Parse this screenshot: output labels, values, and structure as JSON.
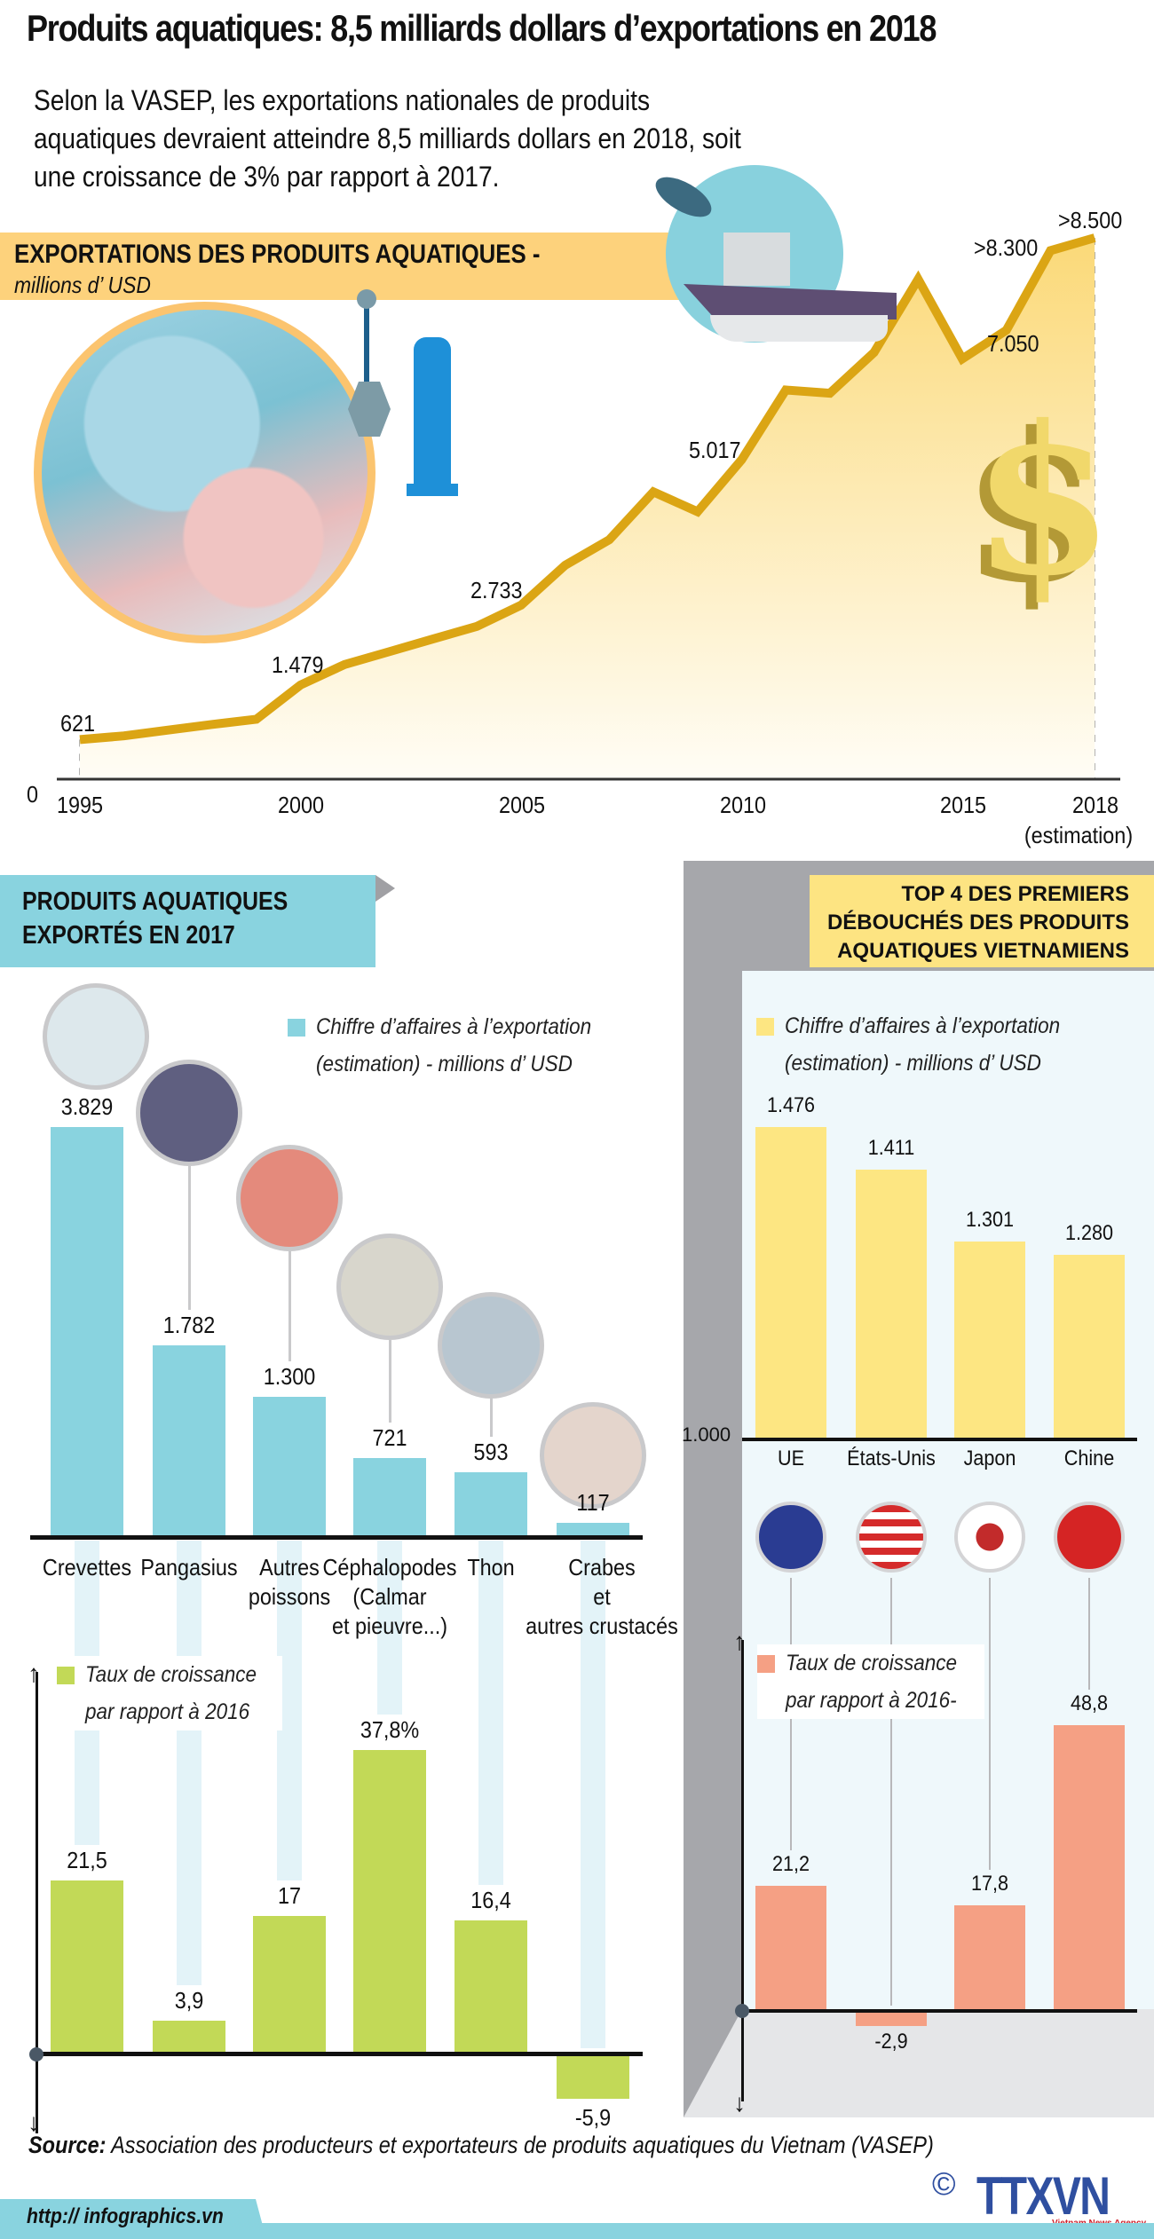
{
  "header": {
    "title": "Produits aquatiques: 8,5 milliards dollars d’exportations en 2018",
    "intro_lines": [
      "Selon la VASEP, les exportations nationales de produits",
      "aquatiques devraient atteindre 8,5 milliards dollars en 2018, soit",
      "une croissance de 3% par rapport à 2017."
    ]
  },
  "section1": {
    "banner_title": "EXPORTATIONS DES PRODUITS AQUATIQUES -",
    "banner_unit": "millions d’ USD",
    "zero_label": "0",
    "estimation_note": "(estimation)",
    "icons": [
      "factory-photo",
      "crane-icon",
      "boat-icon",
      "fish-icon",
      "dollar-icon"
    ]
  },
  "section2": {
    "banner_line1": "PRODUITS AQUATIQUES",
    "banner_line2": "EXPORTÉS EN 2017",
    "legend_value_line1": "Chiffre d’affaires à l’exportation",
    "legend_value_line2": "(estimation) - millions d’ USD",
    "legend_growth_line1": "Taux de croissance",
    "legend_growth_line2": "par rapport à 2016",
    "colors": {
      "value": "#89d3df",
      "growth": "#c2d957"
    }
  },
  "section3": {
    "banner_line1": "TOP 4  DES PREMIERS",
    "banner_line2": "DÉBOUCHÉS DES PRODUITS",
    "banner_line3": "AQUATIQUES VIETNAMIENS",
    "legend_value_line1": "Chiffre d’affaires à l’exportation",
    "legend_value_line2": "(estimation) - millions d’ USD",
    "legend_growth_line1": "Taux de croissance",
    "legend_growth_line2": "par rapport à 2016-",
    "axis_min_label": "1.000",
    "colors": {
      "value": "#fde682",
      "growth": "#f5a084"
    }
  },
  "footer": {
    "source_label": "Source:",
    "source_text": " Association des producteurs et exportateurs de produits aquatiques du Vietnam  (VASEP)",
    "url": "http:// infographics.vn",
    "copyright": "©",
    "logo": "TTXVN",
    "logo_sub": "Vietnam News Agency"
  },
  "chart_data": [
    {
      "type": "area",
      "title": "EXPORTATIONS DES PRODUITS AQUATIQUES - millions d’ USD",
      "xlabel": "",
      "ylabel": "millions d’ USD",
      "x": [
        1995,
        1996,
        1997,
        1998,
        1999,
        2000,
        2001,
        2002,
        2003,
        2004,
        2005,
        2006,
        2007,
        2008,
        2009,
        2010,
        2011,
        2012,
        2013,
        2014,
        2015,
        2016,
        2017,
        2018
      ],
      "values": [
        621,
        680,
        770,
        860,
        940,
        1479,
        1800,
        2000,
        2200,
        2400,
        2733,
        3360,
        3760,
        4510,
        4200,
        5017,
        6110,
        6060,
        6700,
        7850,
        6600,
        7050,
        8300,
        8500
      ],
      "labeled_points": [
        {
          "x": 1995,
          "label": "621"
        },
        {
          "x": 2000,
          "label": "1.479"
        },
        {
          "x": 2005,
          "label": "2.733"
        },
        {
          "x": 2010,
          "label": "5.017"
        },
        {
          "x": 2016,
          "label": "7.050"
        },
        {
          "x": 2017,
          "label": ">8.300"
        },
        {
          "x": 2018,
          "label": ">8.500"
        }
      ],
      "x_tick_labels": [
        "1995",
        "2000",
        "2005",
        "2010",
        "2015",
        "2018"
      ],
      "ylim": [
        0,
        9000
      ],
      "grid": "vertical dashed per year",
      "color": "#dba514"
    },
    {
      "type": "bar",
      "title": "PRODUITS AQUATIQUES EXPORTÉS EN 2017",
      "categories": [
        "Crevettes",
        "Pangasius",
        "Autres poissons",
        "Céphalopodes (Calmar et pieuvre...)",
        "Thon",
        "Crabes et autres crustacés"
      ],
      "category_lines": [
        [
          "Crevettes"
        ],
        [
          "Pangasius"
        ],
        [
          "Autres",
          "poissons"
        ],
        [
          "Céphalopodes",
          "(Calmar",
          "et pieuvre...)"
        ],
        [
          "Thon"
        ],
        [
          "Crabes",
          "et",
          "autres crustacés"
        ]
      ],
      "series": [
        {
          "name": "Chiffre d’affaires à l’exportation (estimation) - millions d’ USD",
          "values": [
            3829,
            1782,
            1300,
            721,
            593,
            117
          ],
          "labels": [
            "3.829",
            "1.782",
            "1.300",
            "721",
            "593",
            "117"
          ]
        },
        {
          "name": "Taux de croissance par rapport à 2016",
          "values": [
            21.5,
            3.9,
            17,
            37.8,
            16.4,
            -5.9
          ],
          "labels": [
            "21,5",
            "3,9",
            "17",
            "37,8%",
            "16,4",
            "-5,9"
          ]
        }
      ]
    },
    {
      "type": "bar",
      "title": "TOP 4 DES PREMIERS DÉBOUCHÉS DES PRODUITS AQUATIQUES VIETNAMIENS",
      "categories": [
        "UE",
        "États-Unis",
        "Japon",
        "Chine"
      ],
      "series": [
        {
          "name": "Chiffre d’affaires à l’exportation (estimation) - millions d’ USD",
          "values": [
            1476,
            1411,
            1301,
            1280
          ],
          "labels": [
            "1.476",
            "1.411",
            "1.301",
            "1.280"
          ]
        },
        {
          "name": "Taux de croissance par rapport à 2016",
          "values": [
            21.2,
            -2.9,
            17.8,
            48.8
          ],
          "labels": [
            "21,2",
            "-2,9",
            "17,8",
            "48,8"
          ]
        }
      ],
      "ylim_value": [
        1000,
        1500
      ],
      "flags": [
        "eu-flag-icon",
        "us-flag-icon",
        "japan-flag-icon",
        "china-flag-icon"
      ]
    }
  ]
}
